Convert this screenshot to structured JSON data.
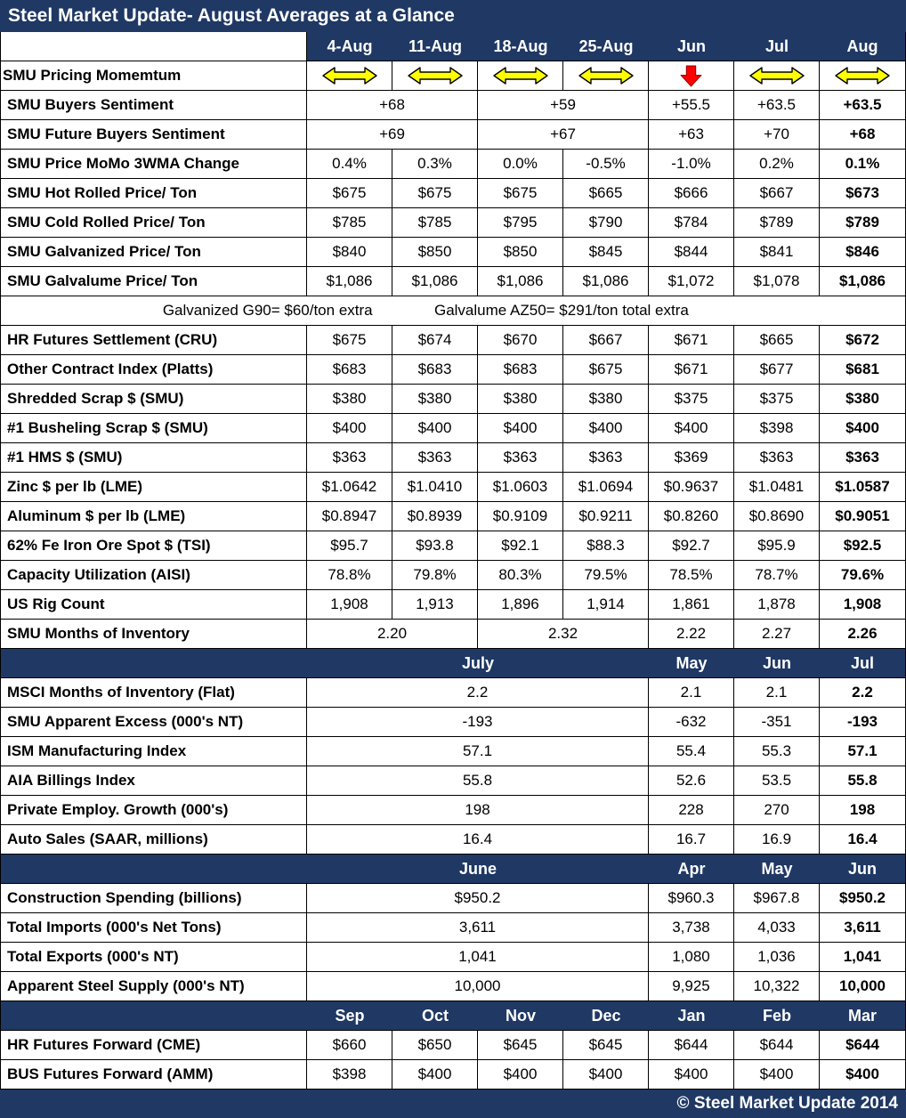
{
  "title": "Steel Market Update- August Averages at a Glance",
  "footer": "© Steel Market Update 2014",
  "colors": {
    "header_bg": "#1F3864",
    "border": "#000000",
    "arrow_yellow": "#FFFF00",
    "arrow_outline": "#000000",
    "arrow_red": "#FF0000",
    "arrow_red_outline": "#990000"
  },
  "table": {
    "rows": [
      {
        "type": "colheader",
        "label": "",
        "cells": [
          {
            "t": "4-Aug"
          },
          {
            "t": "11-Aug"
          },
          {
            "t": "18-Aug"
          },
          {
            "t": "25-Aug"
          },
          {
            "t": "Jun"
          },
          {
            "t": "Jul"
          },
          {
            "t": "Aug"
          }
        ]
      },
      {
        "type": "arrows",
        "label": "SMU Pricing Momemtum",
        "cells": [
          {
            "icon": "sideways-arrow"
          },
          {
            "icon": "sideways-arrow"
          },
          {
            "icon": "sideways-arrow"
          },
          {
            "icon": "sideways-arrow"
          },
          {
            "icon": "down-arrow"
          },
          {
            "icon": "sideways-arrow"
          },
          {
            "icon": "sideways-arrow"
          }
        ]
      },
      {
        "type": "data",
        "label": "SMU Buyers Sentiment",
        "cells": [
          {
            "t": "+68",
            "span": 2
          },
          {
            "t": "+59",
            "span": 2
          },
          {
            "t": "+55.5"
          },
          {
            "t": "+63.5"
          },
          {
            "t": "+63.5",
            "b": 1
          }
        ]
      },
      {
        "type": "data",
        "label": "SMU Future Buyers Sentiment",
        "cells": [
          {
            "t": "+69",
            "span": 2
          },
          {
            "t": "+67",
            "span": 2
          },
          {
            "t": "+63"
          },
          {
            "t": "+70"
          },
          {
            "t": "+68",
            "b": 1
          }
        ]
      },
      {
        "type": "data",
        "label": "SMU Price MoMo 3WMA Change",
        "cells": [
          {
            "t": "0.4%"
          },
          {
            "t": "0.3%"
          },
          {
            "t": "0.0%"
          },
          {
            "t": "-0.5%"
          },
          {
            "t": "-1.0%"
          },
          {
            "t": "0.2%"
          },
          {
            "t": "0.1%",
            "b": 1
          }
        ]
      },
      {
        "type": "data",
        "label": "SMU Hot Rolled Price/ Ton",
        "cells": [
          {
            "t": "$675"
          },
          {
            "t": "$675"
          },
          {
            "t": "$675"
          },
          {
            "t": "$665"
          },
          {
            "t": "$666"
          },
          {
            "t": "$667"
          },
          {
            "t": "$673",
            "b": 1
          }
        ]
      },
      {
        "type": "data",
        "label": "SMU Cold Rolled Price/ Ton",
        "cells": [
          {
            "t": "$785"
          },
          {
            "t": "$785"
          },
          {
            "t": "$795"
          },
          {
            "t": "$790"
          },
          {
            "t": "$784"
          },
          {
            "t": "$789"
          },
          {
            "t": "$789",
            "b": 1
          }
        ]
      },
      {
        "type": "data",
        "label": "SMU Galvanized Price/ Ton",
        "cells": [
          {
            "t": "$840"
          },
          {
            "t": "$850"
          },
          {
            "t": "$850"
          },
          {
            "t": "$845"
          },
          {
            "t": "$844"
          },
          {
            "t": "$841"
          },
          {
            "t": "$846",
            "b": 1
          }
        ]
      },
      {
        "type": "data",
        "label": "SMU Galvalume Price/ Ton",
        "cells": [
          {
            "t": "$1,086"
          },
          {
            "t": "$1,086"
          },
          {
            "t": "$1,086"
          },
          {
            "t": "$1,086"
          },
          {
            "t": "$1,072"
          },
          {
            "t": "$1,078"
          },
          {
            "t": "$1,086",
            "b": 1
          }
        ]
      },
      {
        "type": "note",
        "texts": [
          "Galvanized G90= $60/ton extra",
          "Galvalume AZ50= $291/ton total extra"
        ]
      },
      {
        "type": "data",
        "label": "HR Futures Settlement (CRU)",
        "cells": [
          {
            "t": "$675"
          },
          {
            "t": "$674"
          },
          {
            "t": "$670"
          },
          {
            "t": "$667"
          },
          {
            "t": "$671"
          },
          {
            "t": "$665"
          },
          {
            "t": "$672",
            "b": 1
          }
        ]
      },
      {
        "type": "data",
        "label": "Other Contract Index (Platts)",
        "cells": [
          {
            "t": "$683"
          },
          {
            "t": "$683"
          },
          {
            "t": "$683"
          },
          {
            "t": "$675"
          },
          {
            "t": "$671"
          },
          {
            "t": "$677"
          },
          {
            "t": "$681",
            "b": 1
          }
        ]
      },
      {
        "type": "data",
        "label": "Shredded Scrap $ (SMU)",
        "cells": [
          {
            "t": "$380"
          },
          {
            "t": "$380"
          },
          {
            "t": "$380"
          },
          {
            "t": "$380"
          },
          {
            "t": "$375"
          },
          {
            "t": "$375"
          },
          {
            "t": "$380",
            "b": 1
          }
        ]
      },
      {
        "type": "data",
        "label": "#1 Busheling Scrap $ (SMU)",
        "cells": [
          {
            "t": "$400"
          },
          {
            "t": "$400"
          },
          {
            "t": "$400"
          },
          {
            "t": "$400"
          },
          {
            "t": "$400"
          },
          {
            "t": "$398"
          },
          {
            "t": "$400",
            "b": 1
          }
        ]
      },
      {
        "type": "data",
        "label": "#1 HMS $ (SMU)",
        "cells": [
          {
            "t": "$363"
          },
          {
            "t": "$363"
          },
          {
            "t": "$363"
          },
          {
            "t": "$363"
          },
          {
            "t": "$369"
          },
          {
            "t": "$363"
          },
          {
            "t": "$363",
            "b": 1
          }
        ]
      },
      {
        "type": "data",
        "label": "Zinc $ per lb (LME)",
        "cells": [
          {
            "t": "$1.0642"
          },
          {
            "t": "$1.0410"
          },
          {
            "t": "$1.0603"
          },
          {
            "t": "$1.0694"
          },
          {
            "t": "$0.9637"
          },
          {
            "t": "$1.0481"
          },
          {
            "t": "$1.0587",
            "b": 1
          }
        ]
      },
      {
        "type": "data",
        "label": "Aluminum $ per lb (LME)",
        "cells": [
          {
            "t": "$0.8947"
          },
          {
            "t": "$0.8939"
          },
          {
            "t": "$0.9109"
          },
          {
            "t": "$0.9211"
          },
          {
            "t": "$0.8260"
          },
          {
            "t": "$0.8690"
          },
          {
            "t": "$0.9051",
            "b": 1
          }
        ]
      },
      {
        "type": "data",
        "label": "62% Fe Iron Ore Spot $ (TSI)",
        "cells": [
          {
            "t": "$95.7"
          },
          {
            "t": "$93.8"
          },
          {
            "t": "$92.1"
          },
          {
            "t": "$88.3"
          },
          {
            "t": "$92.7"
          },
          {
            "t": "$95.9"
          },
          {
            "t": "$92.5",
            "b": 1
          }
        ]
      },
      {
        "type": "data",
        "label": "Capacity Utilization (AISI)",
        "cells": [
          {
            "t": "78.8%"
          },
          {
            "t": "79.8%"
          },
          {
            "t": "80.3%"
          },
          {
            "t": "79.5%"
          },
          {
            "t": "78.5%"
          },
          {
            "t": "78.7%"
          },
          {
            "t": "79.6%",
            "b": 1
          }
        ]
      },
      {
        "type": "data",
        "label": "US Rig Count",
        "cells": [
          {
            "t": "1,908"
          },
          {
            "t": "1,913"
          },
          {
            "t": "1,896"
          },
          {
            "t": "1,914"
          },
          {
            "t": "1,861"
          },
          {
            "t": "1,878"
          },
          {
            "t": "1,908",
            "b": 1
          }
        ]
      },
      {
        "type": "data",
        "label": "SMU Months of Inventory",
        "cells": [
          {
            "t": "2.20",
            "span": 2
          },
          {
            "t": "2.32",
            "span": 2
          },
          {
            "t": "2.22"
          },
          {
            "t": "2.27"
          },
          {
            "t": "2.26",
            "b": 1
          }
        ]
      },
      {
        "type": "monthheader",
        "label": "",
        "cells": [
          {
            "t": "July",
            "span": 4
          },
          {
            "t": "May"
          },
          {
            "t": "Jun"
          },
          {
            "t": "Jul"
          }
        ]
      },
      {
        "type": "data",
        "label": "MSCI Months of Inventory (Flat)",
        "cells": [
          {
            "t": "2.2",
            "span": 4
          },
          {
            "t": "2.1"
          },
          {
            "t": "2.1"
          },
          {
            "t": "2.2",
            "b": 1
          }
        ]
      },
      {
        "type": "data",
        "label": "SMU Apparent Excess (000's NT)",
        "cells": [
          {
            "t": "-193",
            "span": 4
          },
          {
            "t": "-632"
          },
          {
            "t": "-351"
          },
          {
            "t": "-193",
            "b": 1
          }
        ]
      },
      {
        "type": "data",
        "label": "ISM Manufacturing Index",
        "cells": [
          {
            "t": "57.1",
            "span": 4
          },
          {
            "t": "55.4"
          },
          {
            "t": "55.3"
          },
          {
            "t": "57.1",
            "b": 1
          }
        ]
      },
      {
        "type": "data",
        "label": "AIA Billings Index",
        "cells": [
          {
            "t": "55.8",
            "span": 4
          },
          {
            "t": "52.6"
          },
          {
            "t": "53.5"
          },
          {
            "t": "55.8",
            "b": 1
          }
        ]
      },
      {
        "type": "data",
        "label": "Private Employ. Growth (000's)",
        "cells": [
          {
            "t": "198",
            "span": 4
          },
          {
            "t": "228"
          },
          {
            "t": "270"
          },
          {
            "t": "198",
            "b": 1
          }
        ]
      },
      {
        "type": "data",
        "label": "Auto Sales (SAAR, millions)",
        "cells": [
          {
            "t": "16.4",
            "span": 4
          },
          {
            "t": "16.7"
          },
          {
            "t": "16.9"
          },
          {
            "t": "16.4",
            "b": 1
          }
        ]
      },
      {
        "type": "monthheader",
        "label": "",
        "cells": [
          {
            "t": "June",
            "span": 4
          },
          {
            "t": "Apr"
          },
          {
            "t": "May"
          },
          {
            "t": "Jun"
          }
        ]
      },
      {
        "type": "data",
        "label": "Construction Spending (billions)",
        "cells": [
          {
            "t": "$950.2",
            "span": 4
          },
          {
            "t": "$960.3"
          },
          {
            "t": "$967.8"
          },
          {
            "t": "$950.2",
            "b": 1
          }
        ]
      },
      {
        "type": "data",
        "label": "Total Imports (000's Net Tons)",
        "cells": [
          {
            "t": "3,611",
            "span": 4
          },
          {
            "t": "3,738"
          },
          {
            "t": "4,033"
          },
          {
            "t": "3,611",
            "b": 1
          }
        ]
      },
      {
        "type": "data",
        "label": "Total Exports (000's NT)",
        "cells": [
          {
            "t": "1,041",
            "span": 4
          },
          {
            "t": "1,080"
          },
          {
            "t": "1,036"
          },
          {
            "t": "1,041",
            "b": 1
          }
        ]
      },
      {
        "type": "data",
        "label": "Apparent Steel Supply (000's NT)",
        "cells": [
          {
            "t": "10,000",
            "span": 4
          },
          {
            "t": "9,925"
          },
          {
            "t": "10,322"
          },
          {
            "t": "10,000",
            "b": 1
          }
        ]
      },
      {
        "type": "monthheader",
        "label": "",
        "cells": [
          {
            "t": "Sep"
          },
          {
            "t": "Oct"
          },
          {
            "t": "Nov"
          },
          {
            "t": "Dec"
          },
          {
            "t": "Jan"
          },
          {
            "t": "Feb"
          },
          {
            "t": "Mar"
          }
        ]
      },
      {
        "type": "data",
        "label": "HR Futures Forward (CME)",
        "cells": [
          {
            "t": "$660"
          },
          {
            "t": "$650"
          },
          {
            "t": "$645"
          },
          {
            "t": "$645"
          },
          {
            "t": "$644"
          },
          {
            "t": "$644"
          },
          {
            "t": "$644",
            "b": 1
          }
        ]
      },
      {
        "type": "data",
        "label": "BUS Futures Forward (AMM)",
        "cells": [
          {
            "t": "$398"
          },
          {
            "t": "$400"
          },
          {
            "t": "$400"
          },
          {
            "t": "$400"
          },
          {
            "t": "$400"
          },
          {
            "t": "$400"
          },
          {
            "t": "$400",
            "b": 1
          }
        ]
      }
    ]
  }
}
